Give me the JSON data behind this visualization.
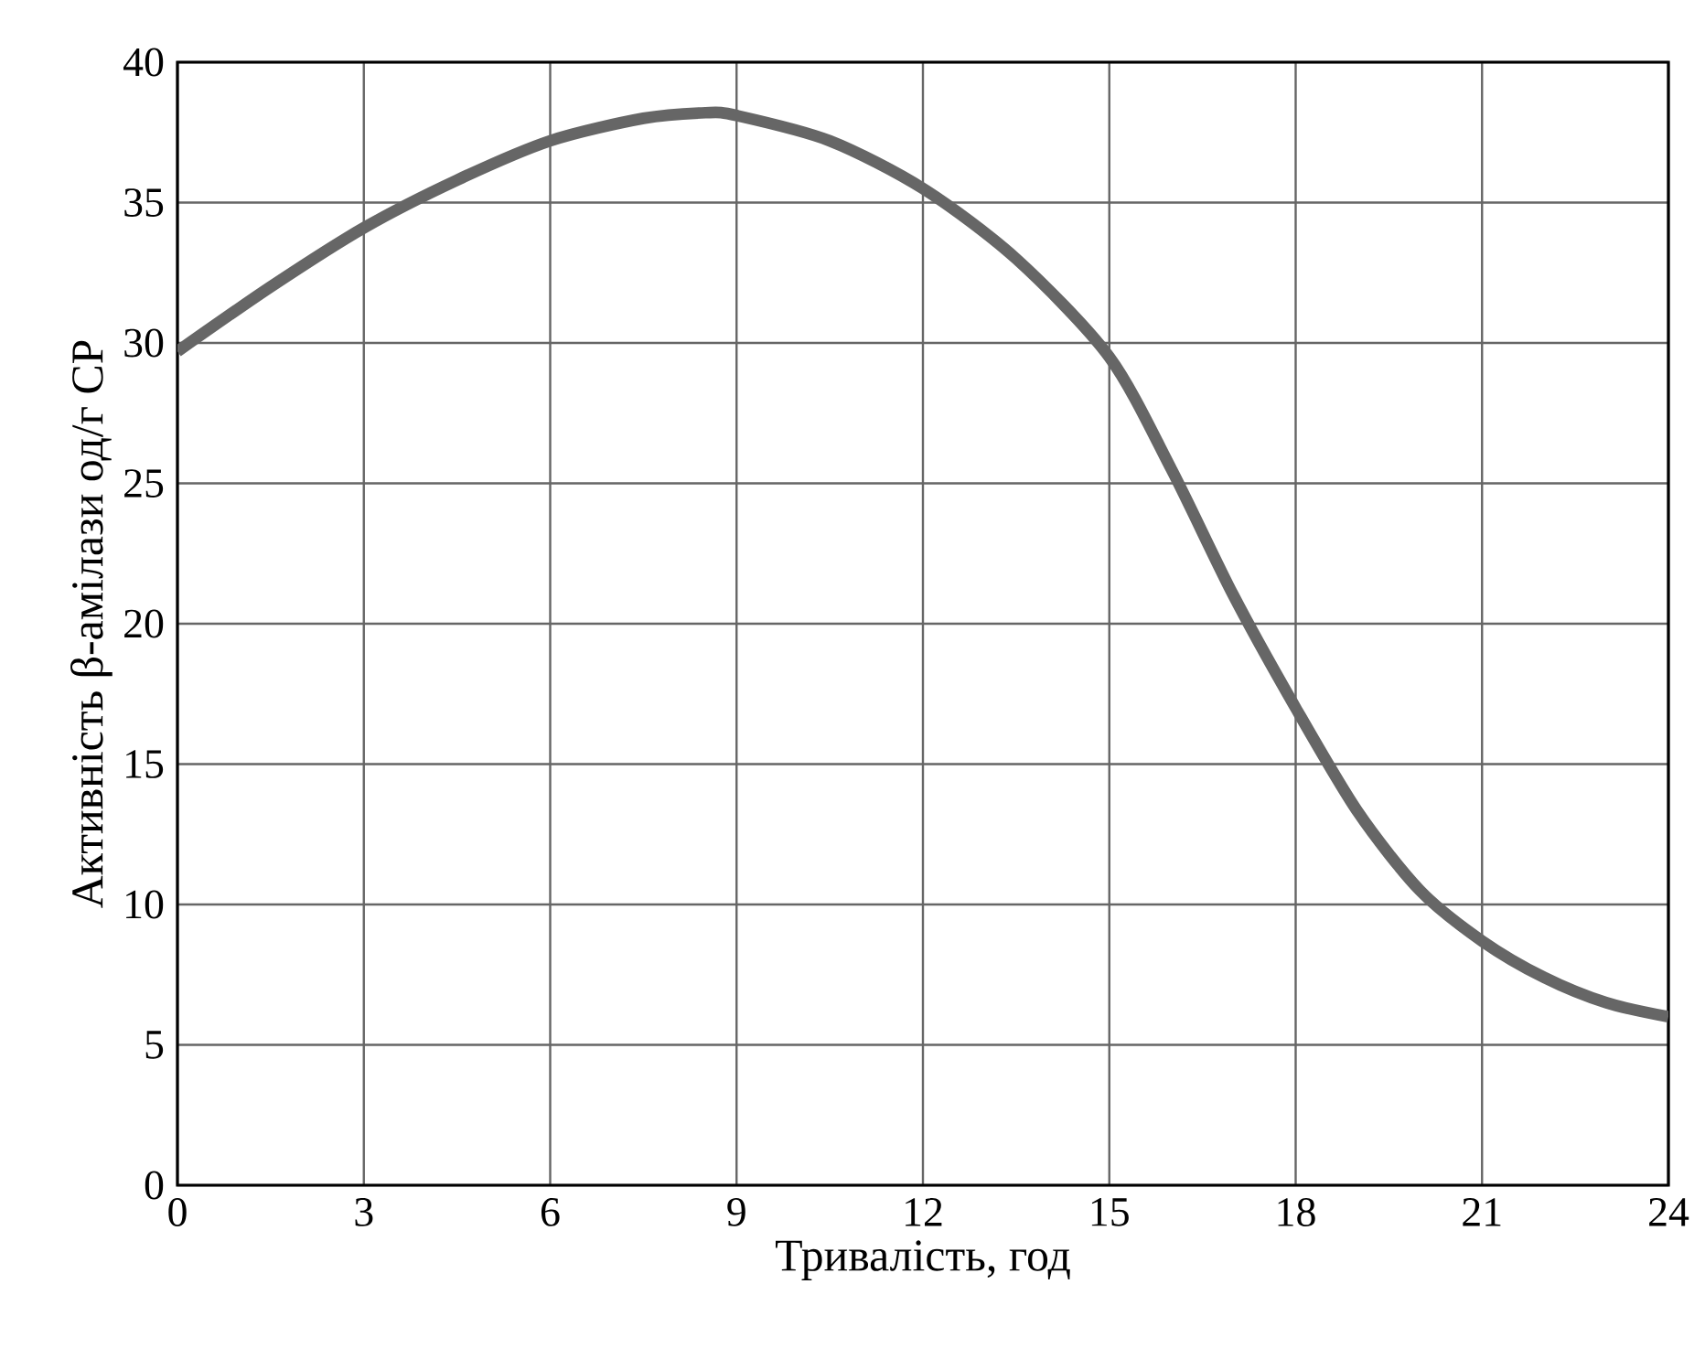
{
  "chart_data": {
    "type": "line",
    "xlabel": "Тривалість, год",
    "ylabel": "Активність β-амілази од/г СР",
    "x": [
      0,
      1.5,
      3,
      4.5,
      6,
      7.5,
      8.5,
      9,
      10.5,
      12,
      13.5,
      15,
      16,
      17,
      18,
      19,
      20,
      21,
      22,
      23,
      24
    ],
    "values": [
      29.7,
      32,
      34.1,
      35.8,
      37.2,
      38,
      38.2,
      38.1,
      37.2,
      35.5,
      33,
      29.5,
      25.5,
      21,
      17,
      13.3,
      10.5,
      8.7,
      7.4,
      6.5,
      6
    ],
    "color": "#666666",
    "line_style": "solid",
    "grid": true,
    "xlim": [
      0,
      24
    ],
    "ylim": [
      0,
      40
    ],
    "xticks": [
      0,
      3,
      6,
      9,
      12,
      15,
      18,
      21,
      24
    ],
    "yticks": [
      0,
      5,
      10,
      15,
      20,
      25,
      30,
      35,
      40
    ]
  }
}
